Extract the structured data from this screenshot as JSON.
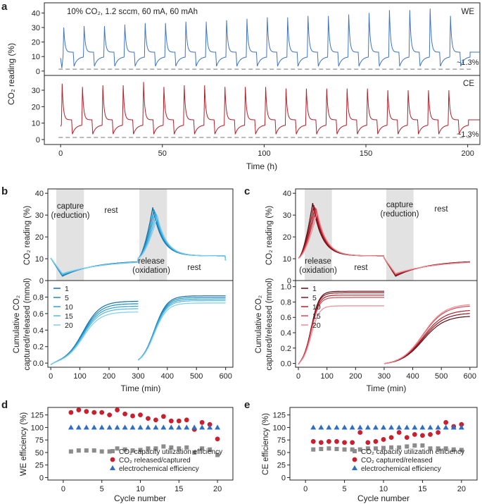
{
  "panel_labels": {
    "a": "a",
    "b": "b",
    "c": "c",
    "d": "d",
    "e": "e"
  },
  "chart_data": [
    {
      "id": "a",
      "type": "line",
      "condition": "10% CO₂, 1.2 sccm, 60 mA, 60 mAh",
      "xlabel": "Time (h)",
      "ylabel": "CO₂ reading (%)",
      "xlim": [
        -8,
        206
      ],
      "x_ticks": [
        0,
        50,
        100,
        150,
        200
      ],
      "y_ticks": [
        0,
        10,
        20,
        30,
        40
      ],
      "ylim_top": [
        -3,
        47
      ],
      "ylim_bottom": [
        -3,
        39
      ],
      "cycles": 20,
      "cycle_period_h": 10,
      "series": [
        {
          "name": "WE",
          "color": "#3f74c0",
          "baseline": 1.3,
          "rest_level": 13,
          "start_peak": 9,
          "peaks": [
            30,
            31,
            31,
            32,
            33,
            33,
            34,
            34,
            35,
            36,
            37,
            37,
            38,
            38,
            39,
            40,
            42,
            42,
            43,
            38
          ]
        },
        {
          "name": "CE",
          "color": "#b3202a",
          "baseline": 1.3,
          "rest_level": 12,
          "peaks": [
            34,
            32,
            33,
            33,
            35,
            32,
            33,
            33,
            32,
            32,
            32,
            31,
            31,
            31,
            31,
            31,
            30,
            30,
            30,
            30
          ]
        }
      ],
      "annotations": [
        "~1.3%",
        "~1.3%"
      ]
    },
    {
      "id": "b",
      "type": "line",
      "top": {
        "ylabel": "CO₂ reading (%)",
        "y_ticks": [
          0,
          10,
          20,
          30,
          40
        ],
        "ylim": [
          0,
          42
        ],
        "labels": [
          "capture",
          "(reduction)",
          "rest",
          "release",
          "(oxidation)",
          "rest"
        ],
        "shaded": [
          [
            0,
            100
          ],
          [
            300,
            400
          ]
        ],
        "peaks": [
          33.5,
          32.5,
          31.5,
          30.5,
          29.5
        ],
        "baseline": 10.3
      },
      "bottom": {
        "ylabel_line1": "Cumulative CO₂",
        "ylabel_line2": "captured/released (mmol)",
        "y_ticks": [
          0.0,
          0.2,
          0.4,
          0.6,
          0.8
        ],
        "ylim": [
          -0.05,
          1.0
        ],
        "capture_end": [
          0.75,
          0.72,
          0.69,
          0.66,
          0.62
        ],
        "release_end": [
          0.84,
          0.82,
          0.8,
          0.78,
          0.75
        ]
      },
      "xlabel": "Time (min)",
      "x_ticks": [
        0,
        100,
        200,
        300,
        400,
        500,
        600
      ],
      "xlim": [
        -10,
        625
      ],
      "legend": [
        "1",
        "5",
        "10",
        "15",
        "20"
      ],
      "colors": [
        "#0f6fa8",
        "#1e8bc3",
        "#2fa3d6",
        "#55b8e2",
        "#7fcdee"
      ]
    },
    {
      "id": "c",
      "type": "line",
      "top": {
        "ylabel": "CO₂ reading (%)",
        "y_ticks": [
          0,
          10,
          20,
          30,
          40
        ],
        "ylim": [
          0,
          42
        ],
        "labels": [
          "release",
          "(oxidation)",
          "rest",
          "capture",
          "(reduction)",
          "rest"
        ],
        "shaded": [
          [
            0,
            100
          ],
          [
            300,
            400
          ]
        ],
        "peaks": [
          35.5,
          34.5,
          33.5,
          33,
          31.5
        ],
        "baseline": 10.3
      },
      "bottom": {
        "ylabel_line1": "Cumulative CO₂",
        "ylabel_line2": "captured/released (mmol)",
        "y_ticks": [
          0.0,
          0.2,
          0.4,
          0.6,
          0.8,
          1.0
        ],
        "ylim": [
          -0.05,
          1.08
        ],
        "release_end": [
          0.94,
          0.92,
          0.89,
          0.86,
          0.75
        ],
        "capture_end": [
          0.64,
          0.68,
          0.72,
          0.78,
          0.8
        ]
      },
      "xlabel": "Time (min)",
      "x_ticks": [
        0,
        100,
        200,
        300,
        400,
        500,
        600
      ],
      "xlim": [
        -10,
        625
      ],
      "legend": [
        "1",
        "5",
        "10",
        "15",
        "20"
      ],
      "colors": [
        "#5a0a10",
        "#8a1620",
        "#b3202a",
        "#d44a55",
        "#ee8a92"
      ]
    },
    {
      "id": "d",
      "type": "scatter",
      "xlabel": "Cycle number",
      "ylabel": "WE efficiency (%)",
      "x_ticks": [
        0,
        5,
        10,
        15,
        20
      ],
      "y_ticks": [
        0,
        25,
        50,
        75,
        100,
        125
      ],
      "xlim": [
        -2,
        22
      ],
      "ylim": [
        -5,
        140
      ],
      "series": [
        {
          "name": "CO₂ capacity utilization efficiency",
          "marker": "square",
          "color": "#8c8c8c",
          "x": [
            1,
            2,
            3,
            4,
            5,
            6,
            7,
            8,
            9,
            10,
            11,
            12,
            13,
            14,
            15,
            16,
            17,
            18,
            19,
            20
          ],
          "y": [
            52,
            54,
            54,
            54,
            52,
            52,
            58,
            56,
            54,
            55,
            58,
            58,
            62,
            60,
            58,
            60,
            50,
            58,
            56,
            45
          ]
        },
        {
          "name": "CO₂ released/captured",
          "marker": "circle",
          "color": "#c8202e",
          "x": [
            1,
            2,
            3,
            4,
            5,
            6,
            7,
            8,
            9,
            10,
            11,
            12,
            13,
            14,
            15,
            16,
            17,
            18,
            19,
            20
          ],
          "y": [
            130,
            135,
            132,
            130,
            130,
            125,
            135,
            127,
            123,
            125,
            118,
            115,
            122,
            113,
            113,
            115,
            96,
            110,
            106,
            77
          ]
        },
        {
          "name": "electrochemical efficiency",
          "marker": "triangle",
          "color": "#2e6fc4",
          "x": [
            1,
            2,
            3,
            4,
            5,
            6,
            7,
            8,
            9,
            10,
            11,
            12,
            13,
            14,
            15,
            16,
            17,
            18,
            19,
            20
          ],
          "y": [
            100,
            100,
            100,
            100,
            100,
            100,
            100,
            100,
            100,
            100,
            100,
            100,
            100,
            100,
            100,
            100,
            100,
            100,
            100,
            100
          ]
        }
      ]
    },
    {
      "id": "e",
      "type": "scatter",
      "xlabel": "Cycle number",
      "ylabel": "CE efficiency (%)",
      "x_ticks": [
        0,
        5,
        10,
        15,
        20
      ],
      "y_ticks": [
        0,
        25,
        50,
        75,
        100,
        125
      ],
      "xlim": [
        -2,
        22
      ],
      "ylim": [
        -5,
        140
      ],
      "series": [
        {
          "name": "CO₂ capacity utilization efficiency",
          "marker": "square",
          "color": "#8c8c8c",
          "x": [
            1,
            2,
            3,
            4,
            5,
            6,
            7,
            8,
            9,
            10,
            11,
            12,
            13,
            14,
            15,
            16,
            17,
            18,
            19,
            20
          ],
          "y": [
            56,
            57,
            58,
            57,
            56,
            56,
            56,
            58,
            58,
            59,
            60,
            60,
            62,
            64,
            64,
            58,
            58,
            58,
            56,
            55
          ]
        },
        {
          "name": "CO₂ captured/released",
          "marker": "circle",
          "color": "#c8202e",
          "x": [
            1,
            2,
            3,
            4,
            5,
            6,
            7,
            8,
            9,
            10,
            11,
            12,
            13,
            14,
            15,
            16,
            17,
            18,
            19,
            20
          ],
          "y": [
            72,
            70,
            72,
            72,
            70,
            70,
            90,
            70,
            72,
            76,
            80,
            90,
            80,
            86,
            84,
            86,
            90,
            110,
            102,
            106
          ]
        },
        {
          "name": "electrochemical efficiency",
          "marker": "triangle",
          "color": "#2e6fc4",
          "x": [
            1,
            2,
            3,
            4,
            5,
            6,
            7,
            8,
            9,
            10,
            11,
            12,
            13,
            14,
            15,
            16,
            17,
            18,
            19,
            20
          ],
          "y": [
            100,
            100,
            100,
            100,
            100,
            100,
            100,
            100,
            100,
            100,
            100,
            100,
            100,
            100,
            100,
            100,
            100,
            100,
            100,
            100
          ]
        }
      ]
    }
  ]
}
